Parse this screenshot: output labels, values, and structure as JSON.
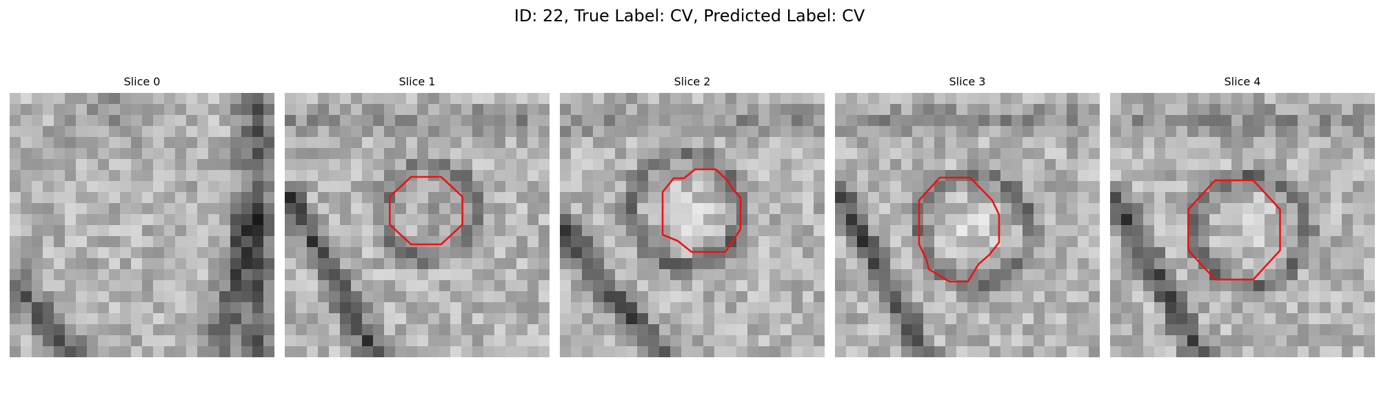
{
  "figure": {
    "title": "ID: 22, True Label: CV, Predicted Label: CV"
  },
  "panels": [
    {
      "title": "Slice 0",
      "has_contour": false
    },
    {
      "title": "Slice 1",
      "has_contour": true
    },
    {
      "title": "Slice 2",
      "has_contour": true
    },
    {
      "title": "Slice 3",
      "has_contour": true
    },
    {
      "title": "Slice 4",
      "has_contour": true
    }
  ],
  "colors": {
    "contour": "#ee1111",
    "background": "#ffffff"
  }
}
